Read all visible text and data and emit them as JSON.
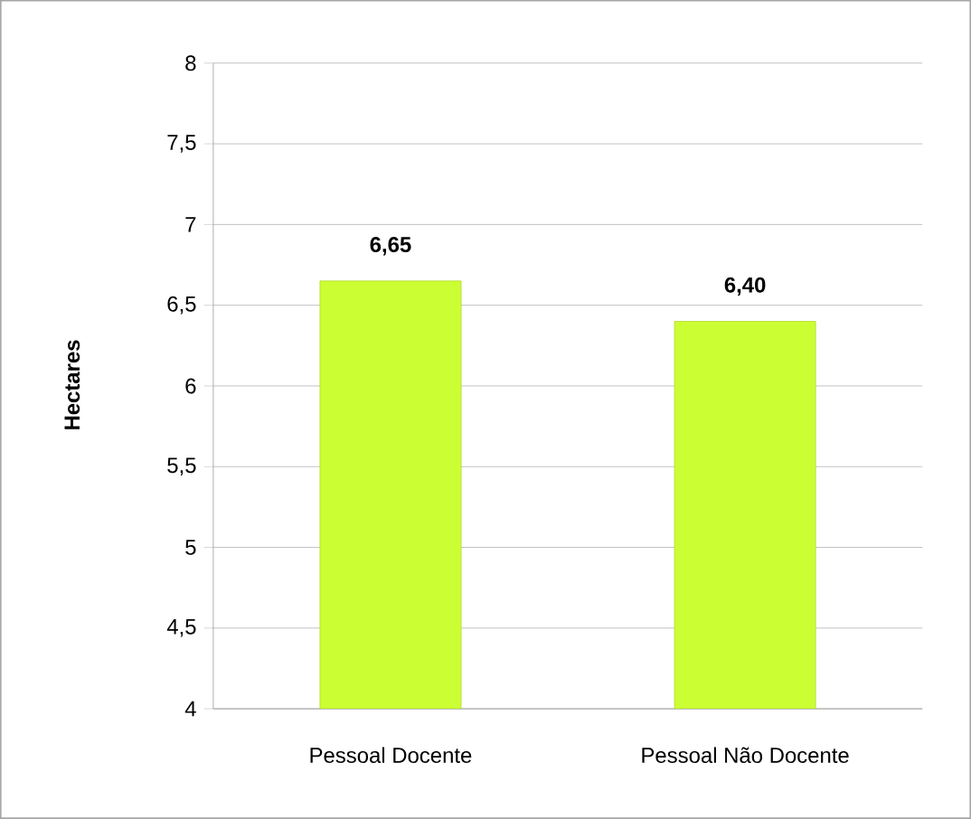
{
  "chart_data": {
    "type": "bar",
    "ylabel": "Hectares",
    "categories": [
      "Pessoal Docente",
      "Pessoal Não Docente"
    ],
    "values": [
      6.65,
      6.4
    ],
    "value_labels": [
      "6,65",
      "6,40"
    ],
    "color": "#ccff33",
    "ylim": [
      4,
      8
    ],
    "yticks": [
      4,
      {
        "value": 4.5,
        "label": "4,5"
      },
      5,
      {
        "value": 5.5,
        "label": "5,5"
      },
      6,
      {
        "value": 6.5,
        "label": "6,5"
      },
      7,
      {
        "value": 7.5,
        "label": "7,5"
      },
      8
    ],
    "grid": "y"
  }
}
